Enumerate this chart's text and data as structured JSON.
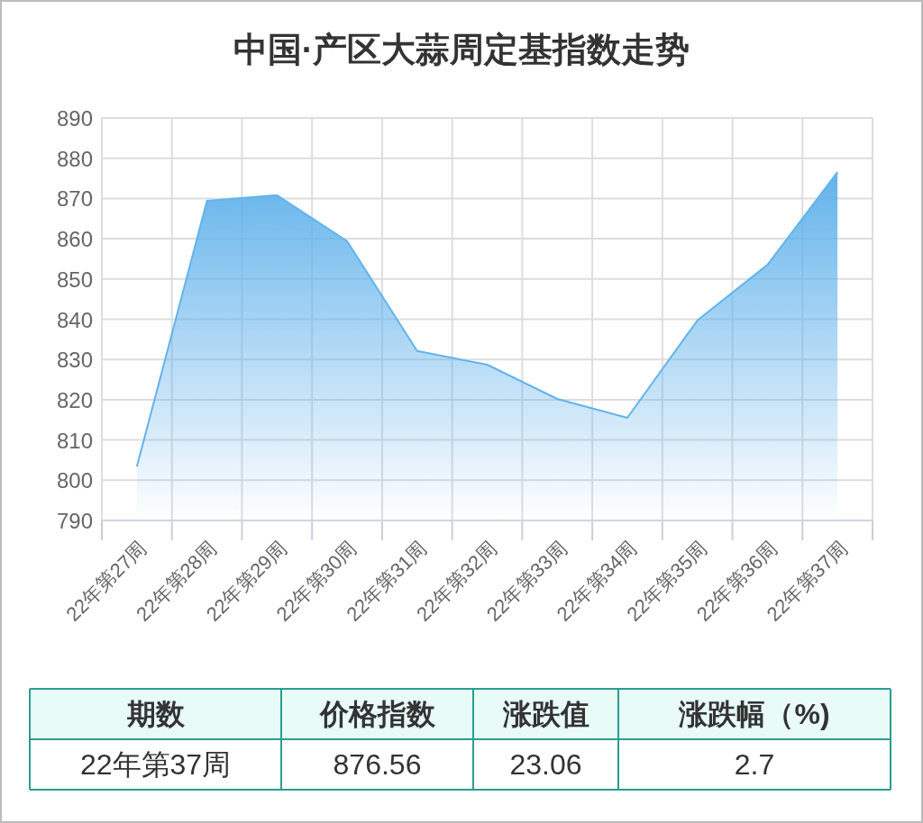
{
  "chart_data": {
    "type": "area",
    "title": "中国·产区大蒜周定基指数走势",
    "categories": [
      "22年第27周",
      "22年第28周",
      "22年第29周",
      "22年第30周",
      "22年第31周",
      "22年第32周",
      "22年第33周",
      "22年第34周",
      "22年第35周",
      "22年第36周",
      "22年第37周"
    ],
    "series": [
      {
        "color": "#63b3ec",
        "values": [
          803.4,
          869.4,
          870.8,
          859.4,
          832.1,
          828.7,
          820.2,
          815.5,
          839.7,
          853.5,
          876.56
        ]
      }
    ],
    "ylim": [
      790,
      890
    ],
    "yticks": [
      790,
      800,
      810,
      820,
      830,
      840,
      850,
      860,
      870,
      880,
      890
    ],
    "grid": true,
    "annotations": [
      "期数",
      "价格指数",
      "涨跌值",
      "涨跌幅（%)",
      "22年第37周",
      "876.56",
      "23.06",
      "2.7"
    ]
  }
}
